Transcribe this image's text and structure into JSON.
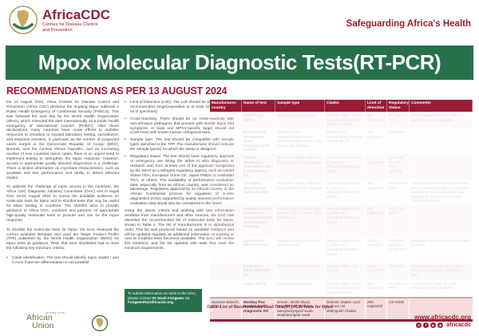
{
  "header": {
    "brand": "AfricaCDC",
    "brand_sub1": "Centres for Disease Control",
    "brand_sub2": "and Prevention",
    "tagline": "Safeguarding Africa's Health"
  },
  "banner": {
    "title": "Mpox Molecular Diagnostic Tests(RT-PCR)"
  },
  "recommendations_heading": "RECOMMENDATIONS AS PER 13 AUGUST 2024",
  "article": {
    "left": [
      {
        "type": "p",
        "text": "On 13 August 2024, Africa Centres for Disease Control and Prevention (Africa CDC) declared the ongoing Mpox outbreak a Public Health Emergency of Continental Security (PHECS). This was followed the next day by the World Health Organization (WHO), which extended the alert internationally as a public health emergency of international concern (PHEIC). After these declarations, many countries have made efforts to mobilize resources to introduce or expand laboratory testing, surveillance, and response activities. In particular, as the number of suspected cases surges in the Democratic Republic of Congo (DRC), Burundi, and the Central African Republic, and an increasing number of new countries report cases, there is an urgent need to implement testing to strengthen the Mpox response. However, access to appropriate quality assured diagnostics is a challenge. There is limited information on important characteristics, such as available test kits' performance and ability to detect relevant clades."
      },
      {
        "type": "p",
        "text": "To address the challenge of mpox access in the continent, the Africa CDC Diagnostic Advisory Committee (DAC) met in Kigali from 19-23 August 2024 to review the available evidence on molecular tests for Mpox and to shortlist tests that may be useful for Mpox testing in countries. The shortlist aims to provide guidance to Africa CDC, countries and partners on appropriate high-quality molecular tests to procure and use for the mpox response."
      },
      {
        "type": "p",
        "text": "To shortlist the molecular tests for Mpox, the DAC reviewed the current available literature and used the Target Product Profile (TPP) published by the World Health Organization (WHO) for Mpox tests as guidance. Tests that were shortlisted had to meet the following key minimum criteria:"
      },
      {
        "type": "bullet",
        "text": "Clade identification: The test should identify mpox clades I and II even if precise differentiation is not possible."
      }
    ],
    "middle": [
      {
        "type": "bullet",
        "text": "Limit of Detection (LoD): The LoD should be within the WHO recommended range(equivalent to at least 1000 copies per ml of specimen)."
      },
      {
        "type": "bullet",
        "text": "Cross-reactivity: There should be no cross-reactivity with non-orthopox pathogens that present with similar signs and symptoms. At least one MPXV-specific target should not cross-react with known human orthopoxviruses."
      },
      {
        "type": "bullet",
        "text": "Sample type: The test should be compatible with sample types specified in the TPP. The manufacturer should indicate the sample type(s) for which the assay is designed."
      },
      {
        "type": "bullet",
        "text": "Regulatory status: The test should have regulatory approval or emergency use listing (for either in vitro diagnostic or research use) from at least one of the agencies recognized by the WHO as a stringent regulatory agency, such as United States FDA, European Union CE, Japan PMDA or Australian TGA, or others. The availability of performance evaluation data, especially from an African country, was considered an advantage. Regulatory approval by an African country or the African Continental process for regulation of in-vitro diagnostics (IVDs) supported by quality assured performance evaluation data would also be considered in the future."
      },
      {
        "type": "p",
        "text": "Using the above criteria and working with test information available from manufacturers and other sources, the DAC has identified the recommended list of molecular tests for Mpox, shown in Table 1. The list of manufacturers is in alphabetical order. This list was produced based on available evidence and will be updated regularly as additional information on existing or new or modified tests becomes available. The DAC will review this evidence, and the list updated with tests that meet the minimum requirements."
      }
    ]
  },
  "contact_box": {
    "text_before": "To submit information on tests to the DAC, please contact ",
    "name": "Dr Noah Fongwen",
    "text_mid": " via ",
    "email": "FongwenN@africacdc.org."
  },
  "table": {
    "columns": [
      "Manufacturer, country",
      "Name of test",
      "Sample type",
      "Clades",
      "Limit of detection",
      "Regulatory Status",
      "Comments"
    ],
    "caption": "Table: List of Recommended Real-Time(RT) PCR Tests for Mpox",
    "rows": [
      {
        "faded": true,
        "manufacturer": "",
        "name": "ALINITY M MPXV",
        "sample": "Lesion swab specimens",
        "clades": "Detects clade I and II. Does not distinguish between clades.",
        "lod": "200 copies/ml",
        "regulatory": "EUA by US FDA",
        "comments": "Limited opportunity for cross reactivity in silico analysis"
      },
      {
        "faded": true,
        "manufacturer": "",
        "name": "Bioperfectus MonkeyPox Virus Genotyping RT PCR kit",
        "sample": "Tonsillar swab, nasopharyngeal swab, lesion exudate, lesion crust, serum, whole blood",
        "clades": "Detects and distinguishes between clades I and II.",
        "lod": "750 copies/ml",
        "regulatory": "CE-IVDD",
        "comments": ""
      },
      {
        "faded": true,
        "manufacturer": "",
        "name": "Viasure Monkeypox Virus Real Time PCR Detection Kit",
        "sample": "Skin lesion swab, vesicular fluid, pustular fluid, exudate",
        "clades": "Detects clades I and II. Does not distinguish between clades.",
        "lod": "5 copies/ml",
        "regulatory": "CE-IVDD, EUA by FDA revoked",
        "comments": ""
      },
      {
        "faded": true,
        "manufacturer": "",
        "name": "Cas Mpox (Monkeypox) Molecular Test",
        "sample": "Skin lesion swab, vesicular fluid, pustular fluid, exudate",
        "clades": "Detects clades I and II. Does not distinguish between clades.",
        "lod": "100 copies/ml",
        "regulatory": "EUA by US FDA",
        "comments": "'cross reactivity' tested in silico only. No cross reaction with non orthopox pathogens with similar signs and symptoms. Cross-reaction with cowpox (72-92%)"
      },
      {
        "faded": true,
        "manufacturer": "",
        "name": "Detection Kit for Monkeypox Virus DNA (PCR-Fluorescence Probing)",
        "sample": "Rashes, blister, blister fluid, pustule fluid, or whole blood specimens",
        "clades": "Detects clades I and II. Does not distinguish between clades.",
        "lod": "200 copies/ml",
        "regulatory": "CE, China NMPA",
        "comments": ""
      },
      {
        "faded": true,
        "manufacturer": "",
        "name": "QuantiVirus MPXV Test Kit",
        "sample": "Swabs of acute pustular or vesicular rash",
        "clades": "Detects clades I and II. Does not distinguish between clades.",
        "lod": "25-40 copies/ml",
        "regulatory": "CE-IVDD and EUA by US FDA",
        "comments": "Reagents for extraction not included in the kit."
      },
      {
        "faded": true,
        "manufacturer": "",
        "name": "RADI FAST Mpox detection kit",
        "sample": "Skin lesion, pus and crust",
        "clades": "Detects clade I, IIa and IIb",
        "lod": "1000 copies/ml",
        "regulatory": "CE-IVDD",
        "comments": "Independently evaluated in DRC. Has local regulatory approval in DRC."
      },
      {
        "faded": true,
        "manufacturer": "",
        "name": "Cobas MPXV",
        "sample": "Lesion swab samples",
        "clades": "Detects clade I and II. Does not distinguish between clades",
        "lod": "30.5 copies/ml",
        "regulatory": "EUA by US FDA",
        "comments": "Limited opportunity for cross reactivity in silico analysis"
      },
      {
        "faded": false,
        "manufacturer": "Sansure Biotech, China",
        "name": "Monkey Pox Nucleic Acid Diagnostic Kit",
        "sample": "Serum, whole blood, vesicles and pustules, nasopharyngeal swab, oropharyngeal swab",
        "clades": "Detects clades I and II. Does not distinguish Clades",
        "lod": "200 copies/ml",
        "regulatory": "CE-IVDD",
        "comments": ""
      }
    ]
  },
  "footer": {
    "au_entity": "An entity of the",
    "au_line1": "African",
    "au_line2": "Union",
    "website": "www.africacdc.org",
    "social_handle": "africacdc",
    "social_icons": [
      "x-icon",
      "facebook-icon",
      "youtube-icon",
      "instagram-icon"
    ]
  },
  "colors": {
    "maroon": "#9b1b33",
    "green": "#26714a",
    "row_pink": "#f7dcdc"
  }
}
